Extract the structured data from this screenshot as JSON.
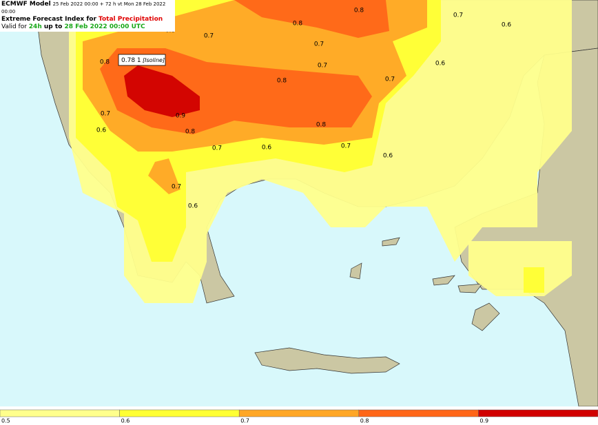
{
  "header": {
    "model": "ECMWF Model",
    "run": "25 Feb 2022 00:00 + 72 h vt Mon 28 Feb 2022 00:00",
    "title_prefix": "Extreme Forecast Index for ",
    "title_param": "Total Precipitation",
    "valid_prefix": "Valid for ",
    "valid_period": "24h",
    "valid_mid": " up to ",
    "valid_time": "28 Feb 2022 00:00 UTC"
  },
  "tooltip": {
    "value": "0.78 1",
    "tag": "[Isoline]"
  },
  "isolines": [
    0.8,
    0.7,
    0.6,
    0.8,
    0.7,
    0.8,
    0.7,
    0.8,
    0.6,
    0.7,
    0.8,
    0.7,
    0.7,
    0.9,
    0.8,
    0.6,
    0.8,
    0.7,
    0.6,
    0.7,
    0.6,
    0.7,
    0.6
  ],
  "legend": {
    "ticks": [
      0.5,
      0.6,
      0.7,
      0.8,
      0.9
    ],
    "colors": [
      "#ffff8c",
      "#ffff33",
      "#ffa726",
      "#ff6618",
      "#d10000"
    ]
  }
}
